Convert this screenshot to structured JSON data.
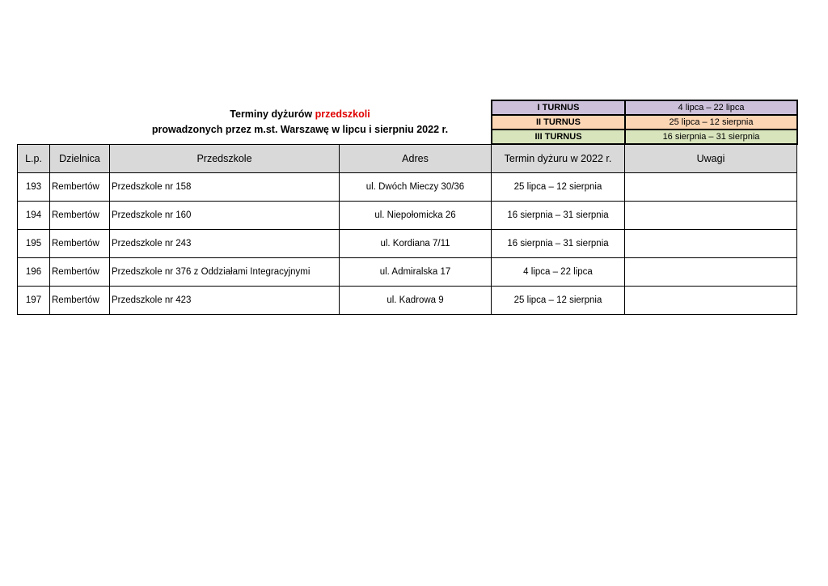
{
  "title": {
    "prefix": "Terminy dyżurów ",
    "highlight": "przedszkoli",
    "line2": "prowadzonych przez m.st. Warszawę w lipcu i sierpniu 2022 r.",
    "highlight_color": "#e00000"
  },
  "legend": [
    {
      "label": "I TURNUS",
      "dates": "4 lipca – 22 lipca",
      "color": "#ccc0da"
    },
    {
      "label": "II TURNUS",
      "dates": "25 lipca – 12 sierpnia",
      "color": "#fcd5b4"
    },
    {
      "label": "III TURNUS",
      "dates": "16 sierpnia – 31 sierpnia",
      "color": "#d8e4bc"
    }
  ],
  "table": {
    "headers": [
      "L.p.",
      "Dzielnica",
      "Przedszkole",
      "Adres",
      "Termin dyżuru w 2022 r.",
      "Uwagi"
    ],
    "rows": [
      [
        "193",
        "Rembertów",
        "Przedszkole nr 158",
        "ul. Dwóch Mieczy 30/36",
        "25 lipca – 12 sierpnia",
        ""
      ],
      [
        "194",
        "Rembertów",
        "Przedszkole nr 160",
        "ul. Niepołomicka 26",
        "16 sierpnia – 31 sierpnia",
        ""
      ],
      [
        "195",
        "Rembertów",
        "Przedszkole nr 243",
        "ul. Kordiana 7/11",
        "16 sierpnia – 31 sierpnia",
        ""
      ],
      [
        "196",
        "Rembertów",
        "Przedszkole nr 376 z Oddziałami Integracyjnymi",
        "ul. Admiralska 17",
        "4 lipca – 22 lipca",
        ""
      ],
      [
        "197",
        "Rembertów",
        "Przedszkole nr 423",
        "ul. Kadrowa 9",
        "25 lipca – 12 sierpnia",
        ""
      ]
    ]
  }
}
